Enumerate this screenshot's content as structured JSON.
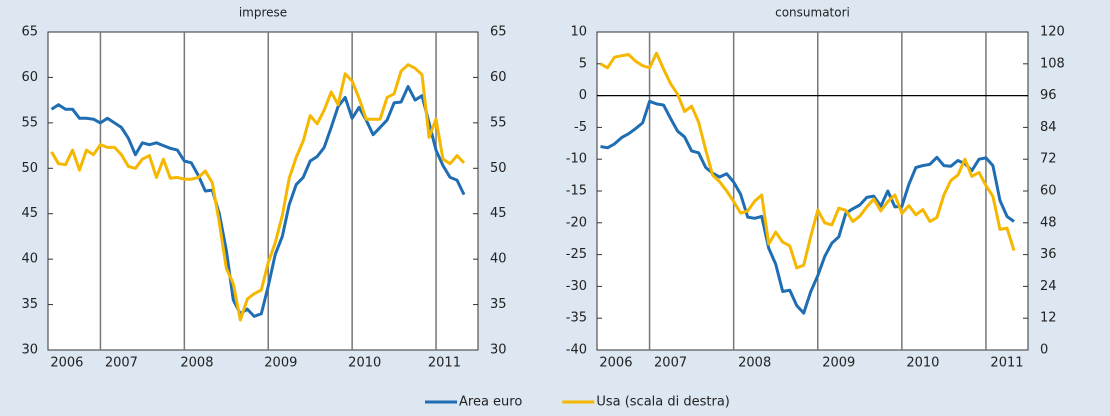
{
  "chart_data": [
    {
      "type": "line",
      "title": "imprese",
      "x": [
        2006.417,
        2006.5,
        2006.583,
        2006.667,
        2006.75,
        2006.833,
        2006.917,
        2007,
        2007.083,
        2007.167,
        2007.25,
        2007.333,
        2007.417,
        2007.5,
        2007.583,
        2007.667,
        2007.75,
        2007.833,
        2007.917,
        2008,
        2008.083,
        2008.167,
        2008.25,
        2008.333,
        2008.417,
        2008.5,
        2008.583,
        2008.667,
        2008.75,
        2008.833,
        2008.917,
        2009,
        2009.083,
        2009.167,
        2009.25,
        2009.333,
        2009.417,
        2009.5,
        2009.583,
        2009.667,
        2009.75,
        2009.833,
        2009.917,
        2010,
        2010.083,
        2010.167,
        2010.25,
        2010.333,
        2010.417,
        2010.5,
        2010.583,
        2010.667,
        2010.75,
        2010.833,
        2010.917,
        2011,
        2011.083,
        2011.167,
        2011.25,
        2011.333
      ],
      "xlim": [
        2006.375,
        2011.5
      ],
      "xticks": [
        {
          "value": 2006.6,
          "label": "2006"
        },
        {
          "value": 2007.25,
          "label": "2007"
        },
        {
          "value": 2008.15,
          "label": "2008"
        },
        {
          "value": 2009.15,
          "label": "2009"
        },
        {
          "value": 2010.15,
          "label": "2010"
        },
        {
          "value": 2011.1,
          "label": "2011"
        }
      ],
      "year_lines": [
        2007,
        2008,
        2009,
        2010,
        2011
      ],
      "ylim": [
        30,
        65
      ],
      "yticks": [
        30,
        35,
        40,
        45,
        50,
        55,
        60,
        65
      ],
      "y2lim": [
        30,
        65
      ],
      "y2ticks": [
        30,
        35,
        40,
        45,
        50,
        55,
        60,
        65
      ],
      "series": [
        {
          "name": "Area euro",
          "color": "#1f6db3",
          "values": [
            56.5,
            57,
            56.5,
            56.5,
            55.5,
            55.5,
            55.4,
            55,
            55.5,
            55,
            54.5,
            53.3,
            51.5,
            52.8,
            52.6,
            52.8,
            52.5,
            52.2,
            52,
            50.8,
            50.6,
            49.2,
            47.5,
            47.6,
            45,
            41,
            35.5,
            34,
            34.5,
            33.7,
            34,
            37,
            40.5,
            42.5,
            46,
            48.2,
            49,
            50.8,
            51.3,
            52.3,
            54.5,
            56.8,
            57.8,
            55.5,
            56.7,
            55.3,
            53.7,
            54.5,
            55.3,
            57.2,
            57.3,
            59,
            57.5,
            58,
            55,
            52,
            50.3,
            49,
            48.7,
            47.1
          ]
        },
        {
          "name": "Usa (scala di destra)",
          "color": "#f5b700",
          "axis": "y2",
          "values": [
            51.8,
            50.5,
            50.4,
            52,
            49.8,
            52,
            51.5,
            52.6,
            52.3,
            52.3,
            51.5,
            50.2,
            50,
            51,
            51.4,
            49,
            51,
            48.9,
            49,
            48.8,
            48.8,
            49,
            49.7,
            48.4,
            44,
            39,
            37.3,
            33.3,
            35.6,
            36.2,
            36.6,
            39.6,
            41.8,
            44.8,
            48.9,
            51.2,
            53,
            55.8,
            54.9,
            56.4,
            58.4,
            57,
            60.4,
            59.6,
            57.7,
            55.4,
            55.4,
            55.4,
            57.8,
            58.2,
            60.7,
            61.4,
            61,
            60.3,
            53.4,
            55.4,
            51,
            50.5,
            51.4,
            50.6
          ]
        }
      ]
    },
    {
      "type": "line",
      "title": "consumatori",
      "x": [
        2006.417,
        2006.5,
        2006.583,
        2006.667,
        2006.75,
        2006.833,
        2006.917,
        2007,
        2007.083,
        2007.167,
        2007.25,
        2007.333,
        2007.417,
        2007.5,
        2007.583,
        2007.667,
        2007.75,
        2007.833,
        2007.917,
        2008,
        2008.083,
        2008.167,
        2008.25,
        2008.333,
        2008.417,
        2008.5,
        2008.583,
        2008.667,
        2008.75,
        2008.833,
        2008.917,
        2009,
        2009.083,
        2009.167,
        2009.25,
        2009.333,
        2009.417,
        2009.5,
        2009.583,
        2009.667,
        2009.75,
        2009.833,
        2009.917,
        2010,
        2010.083,
        2010.167,
        2010.25,
        2010.333,
        2010.417,
        2010.5,
        2010.583,
        2010.667,
        2010.75,
        2010.833,
        2010.917,
        2011,
        2011.083,
        2011.167,
        2011.25,
        2011.333
      ],
      "xlim": [
        2006.375,
        2011.5
      ],
      "xticks": [
        {
          "value": 2006.6,
          "label": "2006"
        },
        {
          "value": 2007.25,
          "label": "2007"
        },
        {
          "value": 2008.25,
          "label": "2008"
        },
        {
          "value": 2009.25,
          "label": "2009"
        },
        {
          "value": 2010.25,
          "label": "2010"
        },
        {
          "value": 2011.25,
          "label": "2011"
        }
      ],
      "year_lines": [
        2007,
        2008,
        2009,
        2010,
        2011
      ],
      "ylim": [
        -40,
        10
      ],
      "yticks": [
        -40,
        -35,
        -30,
        -25,
        -20,
        -15,
        -10,
        -5,
        0,
        5,
        10
      ],
      "y2lim": [
        0,
        120
      ],
      "y2ticks": [
        0,
        12,
        24,
        36,
        48,
        60,
        72,
        84,
        96,
        108,
        120
      ],
      "zero_line": true,
      "series": [
        {
          "color": "#1f6db3",
          "values": [
            -8,
            -8.2,
            -7.6,
            -6.6,
            -6,
            -5.2,
            -4.3,
            -0.9,
            -1.3,
            -1.5,
            -3.6,
            -5.6,
            -6.5,
            -8.7,
            -9,
            -11.3,
            -12.2,
            -12.8,
            -12.3,
            -13.6,
            -15.5,
            -19.1,
            -19.3,
            -19,
            -24,
            -26.5,
            -30.8,
            -30.6,
            -33,
            -34.2,
            -30.8,
            -28.3,
            -25.3,
            -23.2,
            -22.2,
            -18.5,
            -17.8,
            -17.2,
            -16,
            -15.8,
            -17.4,
            -15,
            -17.5,
            -17.4,
            -14,
            -11.3,
            -11,
            -10.8,
            -9.7,
            -11,
            -11.1,
            -10.2,
            -10.7,
            -11.8,
            -10,
            -9.8,
            -11,
            -16.5,
            -19,
            -19.8
          ]
        },
        {
          "color": "#f5b700",
          "axis": "y2",
          "values": [
            108,
            106.5,
            110.5,
            111,
            111.5,
            109,
            107.3,
            106.5,
            112,
            106,
            100.5,
            96.5,
            90,
            92,
            86,
            75.5,
            66,
            63.5,
            60,
            56,
            51.7,
            52.5,
            56.2,
            58.5,
            40,
            44.5,
            40.7,
            39.3,
            31,
            32,
            43,
            52.8,
            48,
            47.2,
            53.5,
            52.7,
            48.5,
            50.5,
            54,
            57,
            52.5,
            56,
            58.5,
            51.5,
            54.5,
            51,
            53,
            48.5,
            50,
            58.5,
            64,
            66,
            72,
            65.5,
            67,
            62,
            58,
            45.5,
            46,
            37.5
          ]
        }
      ]
    }
  ]
}
